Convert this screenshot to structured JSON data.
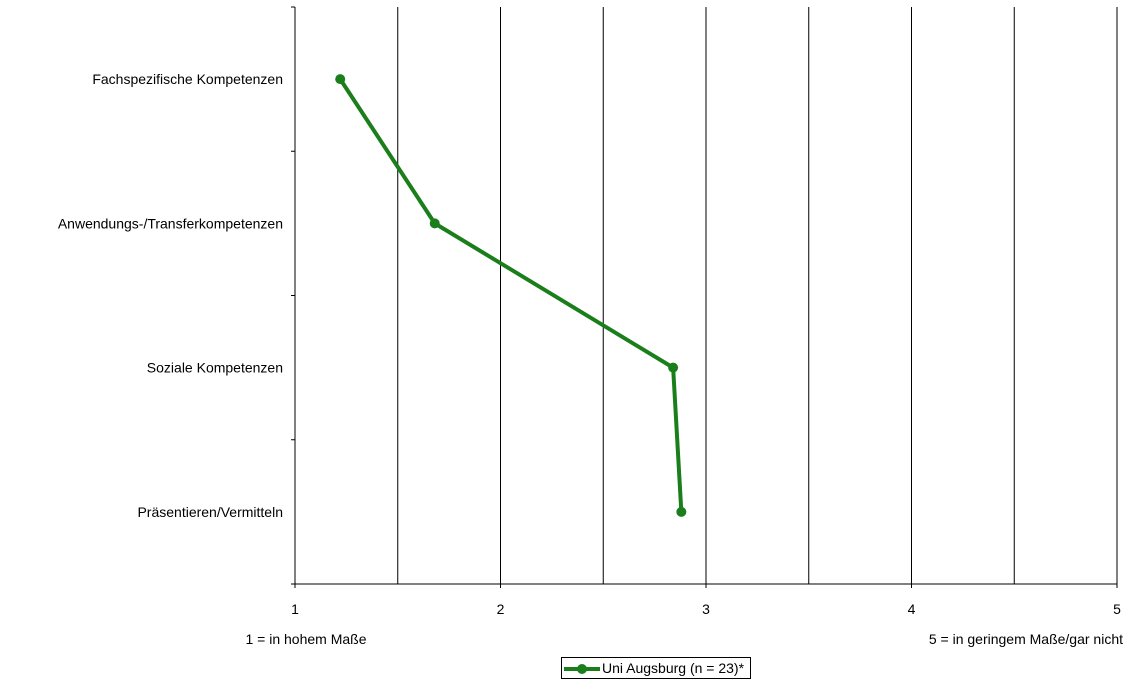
{
  "chart_data": {
    "type": "line",
    "orientation": "horizontal",
    "categories": [
      "Fachspezifische Kompetenzen",
      "Anwendungs-/Transferkompetenzen",
      "Soziale Kompetenzen",
      "Präsentieren/Vermitteln"
    ],
    "series": [
      {
        "name": "Uni Augsburg (n = 23)*",
        "values": [
          1.22,
          1.68,
          2.84,
          2.88
        ],
        "color": "#1a7f1a"
      }
    ],
    "xlim": [
      1,
      5
    ],
    "x_ticks": [
      "1",
      "2",
      "3",
      "4",
      "5"
    ],
    "x_gridlines": [
      1.5,
      2,
      2.5,
      3,
      3.5,
      4,
      4.5,
      5
    ],
    "x_min_label": "1 = in hohem Maße",
    "x_max_label": "5 = in geringem Maße/gar nicht",
    "legend_position": "bottom",
    "grid": true
  }
}
